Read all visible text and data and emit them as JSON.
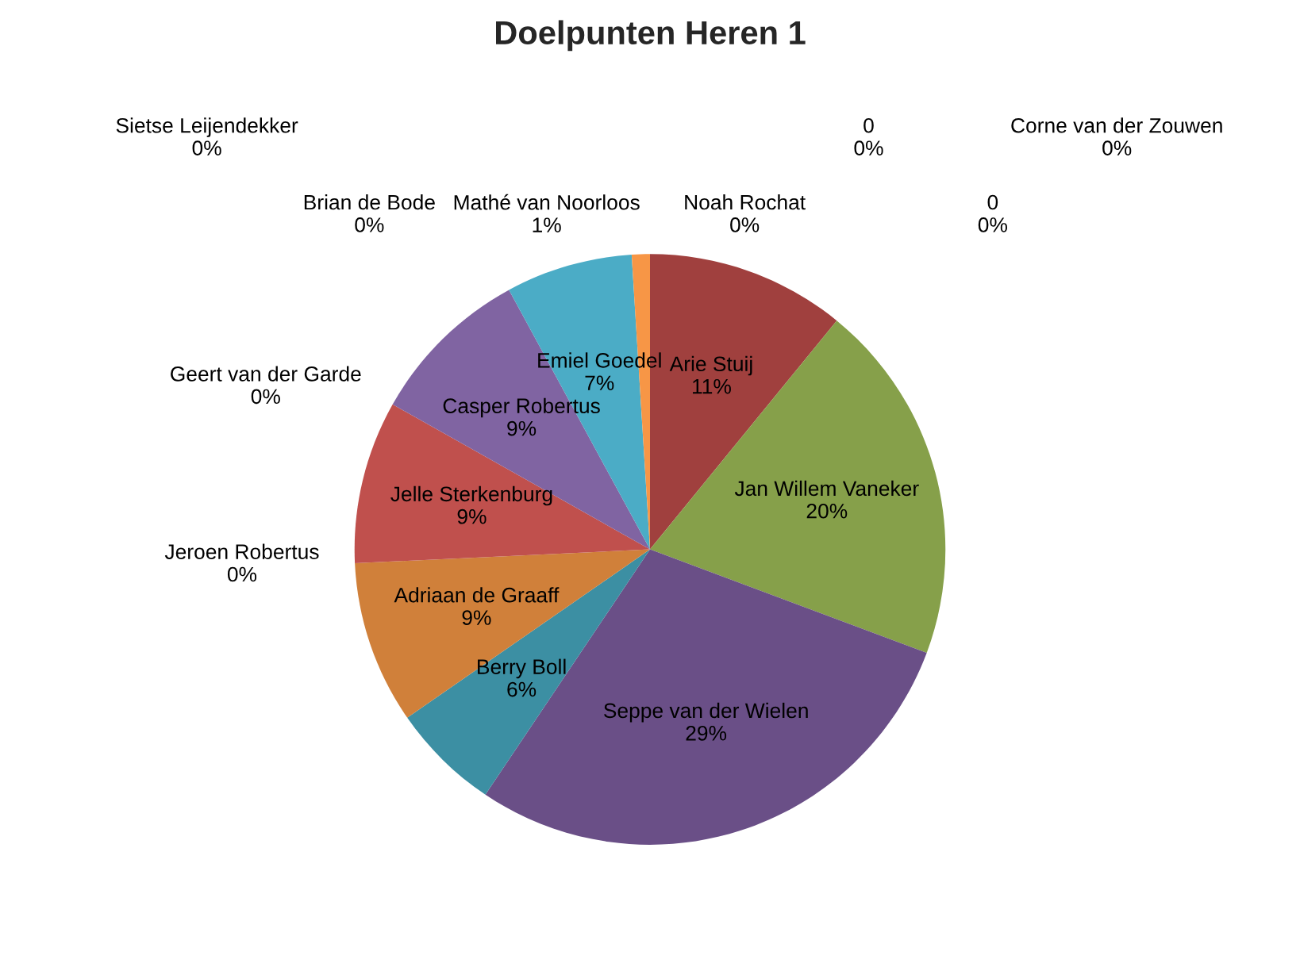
{
  "chart_data": {
    "type": "pie",
    "title": "Doelpunten Heren 1",
    "categories": [
      "Noah Rochat",
      "0",
      "0",
      "Corne van der Zouwen",
      "Arie Stuij",
      "Jan Willem Vaneker",
      "Seppe van der Wielen",
      "Berry Boll",
      "Adriaan de Graaff",
      "Jeroen Robertus",
      "Jelle Sterkenburg",
      "Geert van der Garde",
      "Casper Robertus",
      "Emiel Goedel",
      "Sietse Leijendekker",
      "Brian de Bode",
      "Mathé van Noorloos"
    ],
    "values": [
      0,
      0,
      0,
      0,
      11,
      20,
      29,
      6,
      9,
      0,
      9,
      0,
      9,
      7,
      0,
      0,
      1
    ],
    "value_labels": [
      "0%",
      "0%",
      "0%",
      "0%",
      "11%",
      "20%",
      "29%",
      "6%",
      "9%",
      "0%",
      "9%",
      "0%",
      "9%",
      "7%",
      "0%",
      "0%",
      "1%"
    ],
    "colors": [
      "#9bbb59",
      "#8064a2",
      "#4bacc6",
      "#f79646",
      "#a0403e",
      "#86a04a",
      "#6a4f87",
      "#3c8fa3",
      "#d0803a",
      "#4f81bd",
      "#c0504d",
      "#9bbb59",
      "#8064a2",
      "#4bacc6",
      "#2c4d75",
      "#772c2a",
      "#f79646"
    ]
  }
}
